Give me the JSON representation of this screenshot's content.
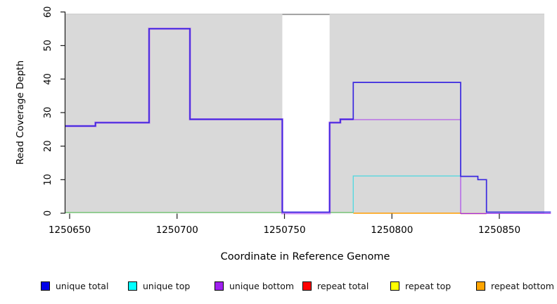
{
  "chart_data": {
    "type": "line",
    "style": "step",
    "title": "",
    "xlabel": "Coordinate in Reference Genome",
    "ylabel": "Read Coverage Depth",
    "xlim": [
      1250648,
      1250874
    ],
    "ylim": [
      0,
      60
    ],
    "x_ticks": [
      1250650,
      1250700,
      1250750,
      1250800,
      1250850
    ],
    "y_ticks": [
      0,
      10,
      20,
      30,
      40,
      50,
      60
    ],
    "plot_background": "#d9d9d9",
    "repeat_region_band": {
      "start": 1250749,
      "end": 1250771,
      "color": "#ffffff",
      "border": "#8a8a8a"
    },
    "series": [
      {
        "id": "zero-baseline",
        "label": "zero coverage baseline",
        "color": "#7cc87c",
        "segments": [
          [
            [
              1250648,
              0
            ],
            [
              1250749,
              0
            ]
          ],
          [
            [
              1250771,
              0
            ],
            [
              1250782,
              0
            ]
          ]
        ]
      },
      {
        "id": "repeat-bottom",
        "label": "repeat bottom",
        "color": "#ff9d00",
        "segments": [
          [
            [
              1250782,
              0
            ],
            [
              1250832,
              0
            ]
          ]
        ]
      },
      {
        "id": "repeat-total",
        "label": "repeat total",
        "color": "#c84a5c",
        "segments": [
          [
            [
              1250832,
              0
            ],
            [
              1250844,
              0
            ]
          ]
        ]
      },
      {
        "id": "unique-bottom-under",
        "label": "unique bottom (under total)",
        "color": "#a020f0",
        "segments": [
          [
            [
              1250648,
              26
            ],
            [
              1250662,
              27
            ],
            [
              1250687,
              55
            ],
            [
              1250706,
              28
            ],
            [
              1250749,
              0
            ],
            [
              1250771,
              27
            ],
            [
              1250776,
              28
            ],
            [
              1250782,
              28
            ]
          ]
        ]
      },
      {
        "id": "unique-top",
        "label": "unique top",
        "color": "#40d8e0",
        "segments": [
          [
            [
              1250782,
              0
            ],
            [
              1250782,
              11
            ],
            [
              1250832,
              11
            ]
          ]
        ]
      },
      {
        "id": "unique-bottom",
        "label": "unique bottom",
        "color": "#a020f0",
        "segments": [
          [
            [
              1250776,
              28
            ],
            [
              1250832,
              0
            ],
            [
              1250874,
              0
            ]
          ]
        ]
      },
      {
        "id": "unique-total",
        "label": "unique total",
        "color": "#3a28e0",
        "segments": [
          [
            [
              1250648,
              26
            ],
            [
              1250662,
              27
            ],
            [
              1250687,
              55
            ],
            [
              1250706,
              28
            ],
            [
              1250749,
              0
            ],
            [
              1250771,
              27
            ],
            [
              1250776,
              28
            ],
            [
              1250782,
              39
            ],
            [
              1250832,
              11
            ],
            [
              1250840,
              10
            ],
            [
              1250844,
              0
            ],
            [
              1250874,
              0
            ]
          ]
        ]
      }
    ],
    "legend": [
      {
        "label": "unique total",
        "color": "#0000e8"
      },
      {
        "label": "unique top",
        "color": "#00ffff"
      },
      {
        "label": "unique bottom",
        "color": "#a020f0"
      },
      {
        "label": "repeat total",
        "color": "#ff0000"
      },
      {
        "label": "repeat top",
        "color": "#ffff00"
      },
      {
        "label": "repeat bottom",
        "color": "#ffa500"
      }
    ],
    "legend_position": "bottom",
    "grid": false
  }
}
